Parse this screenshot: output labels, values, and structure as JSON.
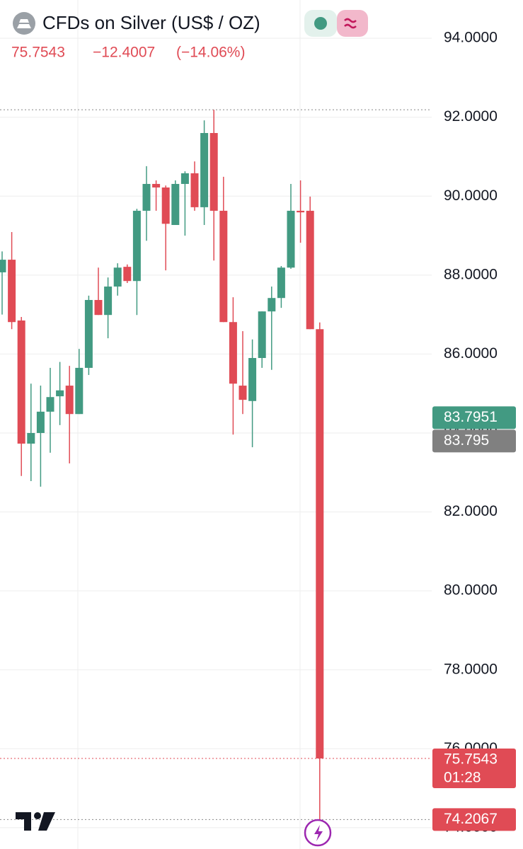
{
  "chart_data": {
    "type": "candlestick",
    "title": "CFDs on Silver (US$ / OZ)",
    "last": "75.7543",
    "change": "−12.4007",
    "change_pct": "(−14.06%)",
    "up_color": "#429a82",
    "down_color": "#e04b55",
    "open": [
      88.07,
      88.39,
      86.85,
      83.73,
      84.0,
      84.54,
      84.93,
      85.2,
      84.48,
      85.65,
      87.37,
      86.99,
      87.71,
      88.21,
      87.85,
      89.63,
      90.31,
      90.22,
      89.27,
      90.31,
      90.58,
      89.72,
      91.6,
      89.63,
      86.81,
      85.2,
      84.81,
      85.9,
      87.08,
      87.42,
      88.19,
      89.63,
      89.63,
      86.63
    ],
    "high": [
      88.6,
      89.09,
      86.94,
      85.25,
      85.2,
      85.65,
      85.8,
      85.7,
      86.13,
      87.48,
      88.19,
      87.94,
      88.3,
      88.27,
      89.68,
      90.76,
      90.4,
      90.27,
      90.4,
      90.63,
      90.88,
      91.92,
      92.19,
      90.49,
      87.44,
      86.58,
      86.37,
      87.08,
      87.71,
      88.23,
      90.31,
      90.4,
      89.99,
      86.8
    ],
    "low": [
      87.0,
      86.63,
      82.91,
      82.78,
      82.64,
      83.5,
      84.2,
      83.23,
      84.48,
      85.47,
      86.99,
      86.4,
      87.48,
      87.8,
      86.99,
      88.87,
      89.63,
      88.12,
      89.27,
      89.0,
      89.63,
      89.27,
      88.37,
      86.81,
      83.96,
      84.48,
      83.64,
      85.65,
      85.6,
      87.17,
      88.16,
      88.82,
      86.63,
      74.2067
    ],
    "close": [
      88.39,
      86.81,
      83.73,
      84.0,
      84.54,
      84.91,
      85.08,
      84.48,
      85.65,
      87.37,
      86.99,
      87.71,
      88.19,
      87.85,
      89.63,
      90.31,
      90.22,
      89.3,
      90.31,
      90.58,
      89.72,
      91.6,
      89.63,
      86.81,
      85.25,
      84.84,
      85.9,
      87.08,
      87.42,
      88.19,
      89.63,
      89.59,
      86.63,
      75.7543
    ],
    "ylim": [
      73.46,
      94.97
    ],
    "yticks": [
      {
        "value": 74,
        "label": "74.0000"
      },
      {
        "value": 76,
        "label": "76.0000"
      },
      {
        "value": 78,
        "label": "78.0000"
      },
      {
        "value": 80,
        "label": "80.0000"
      },
      {
        "value": 82,
        "label": "82.0000"
      },
      {
        "value": 84,
        "label": "84.0000"
      },
      {
        "value": 86,
        "label": "86.0000"
      },
      {
        "value": 88,
        "label": "88.0000"
      },
      {
        "value": 90,
        "label": "90.0000"
      },
      {
        "value": 92,
        "label": "92.0000"
      },
      {
        "value": 94,
        "label": "94.0000"
      }
    ],
    "grid": true,
    "price_tags": [
      {
        "value": 83.7951,
        "color": "#429a82"
      },
      {
        "value": 83.795,
        "color": "#808080"
      },
      {
        "value": 75.7543,
        "color": "#e04b55",
        "countdown": "01:28"
      },
      {
        "value": 74.2067,
        "color": "#e04b55"
      }
    ]
  }
}
